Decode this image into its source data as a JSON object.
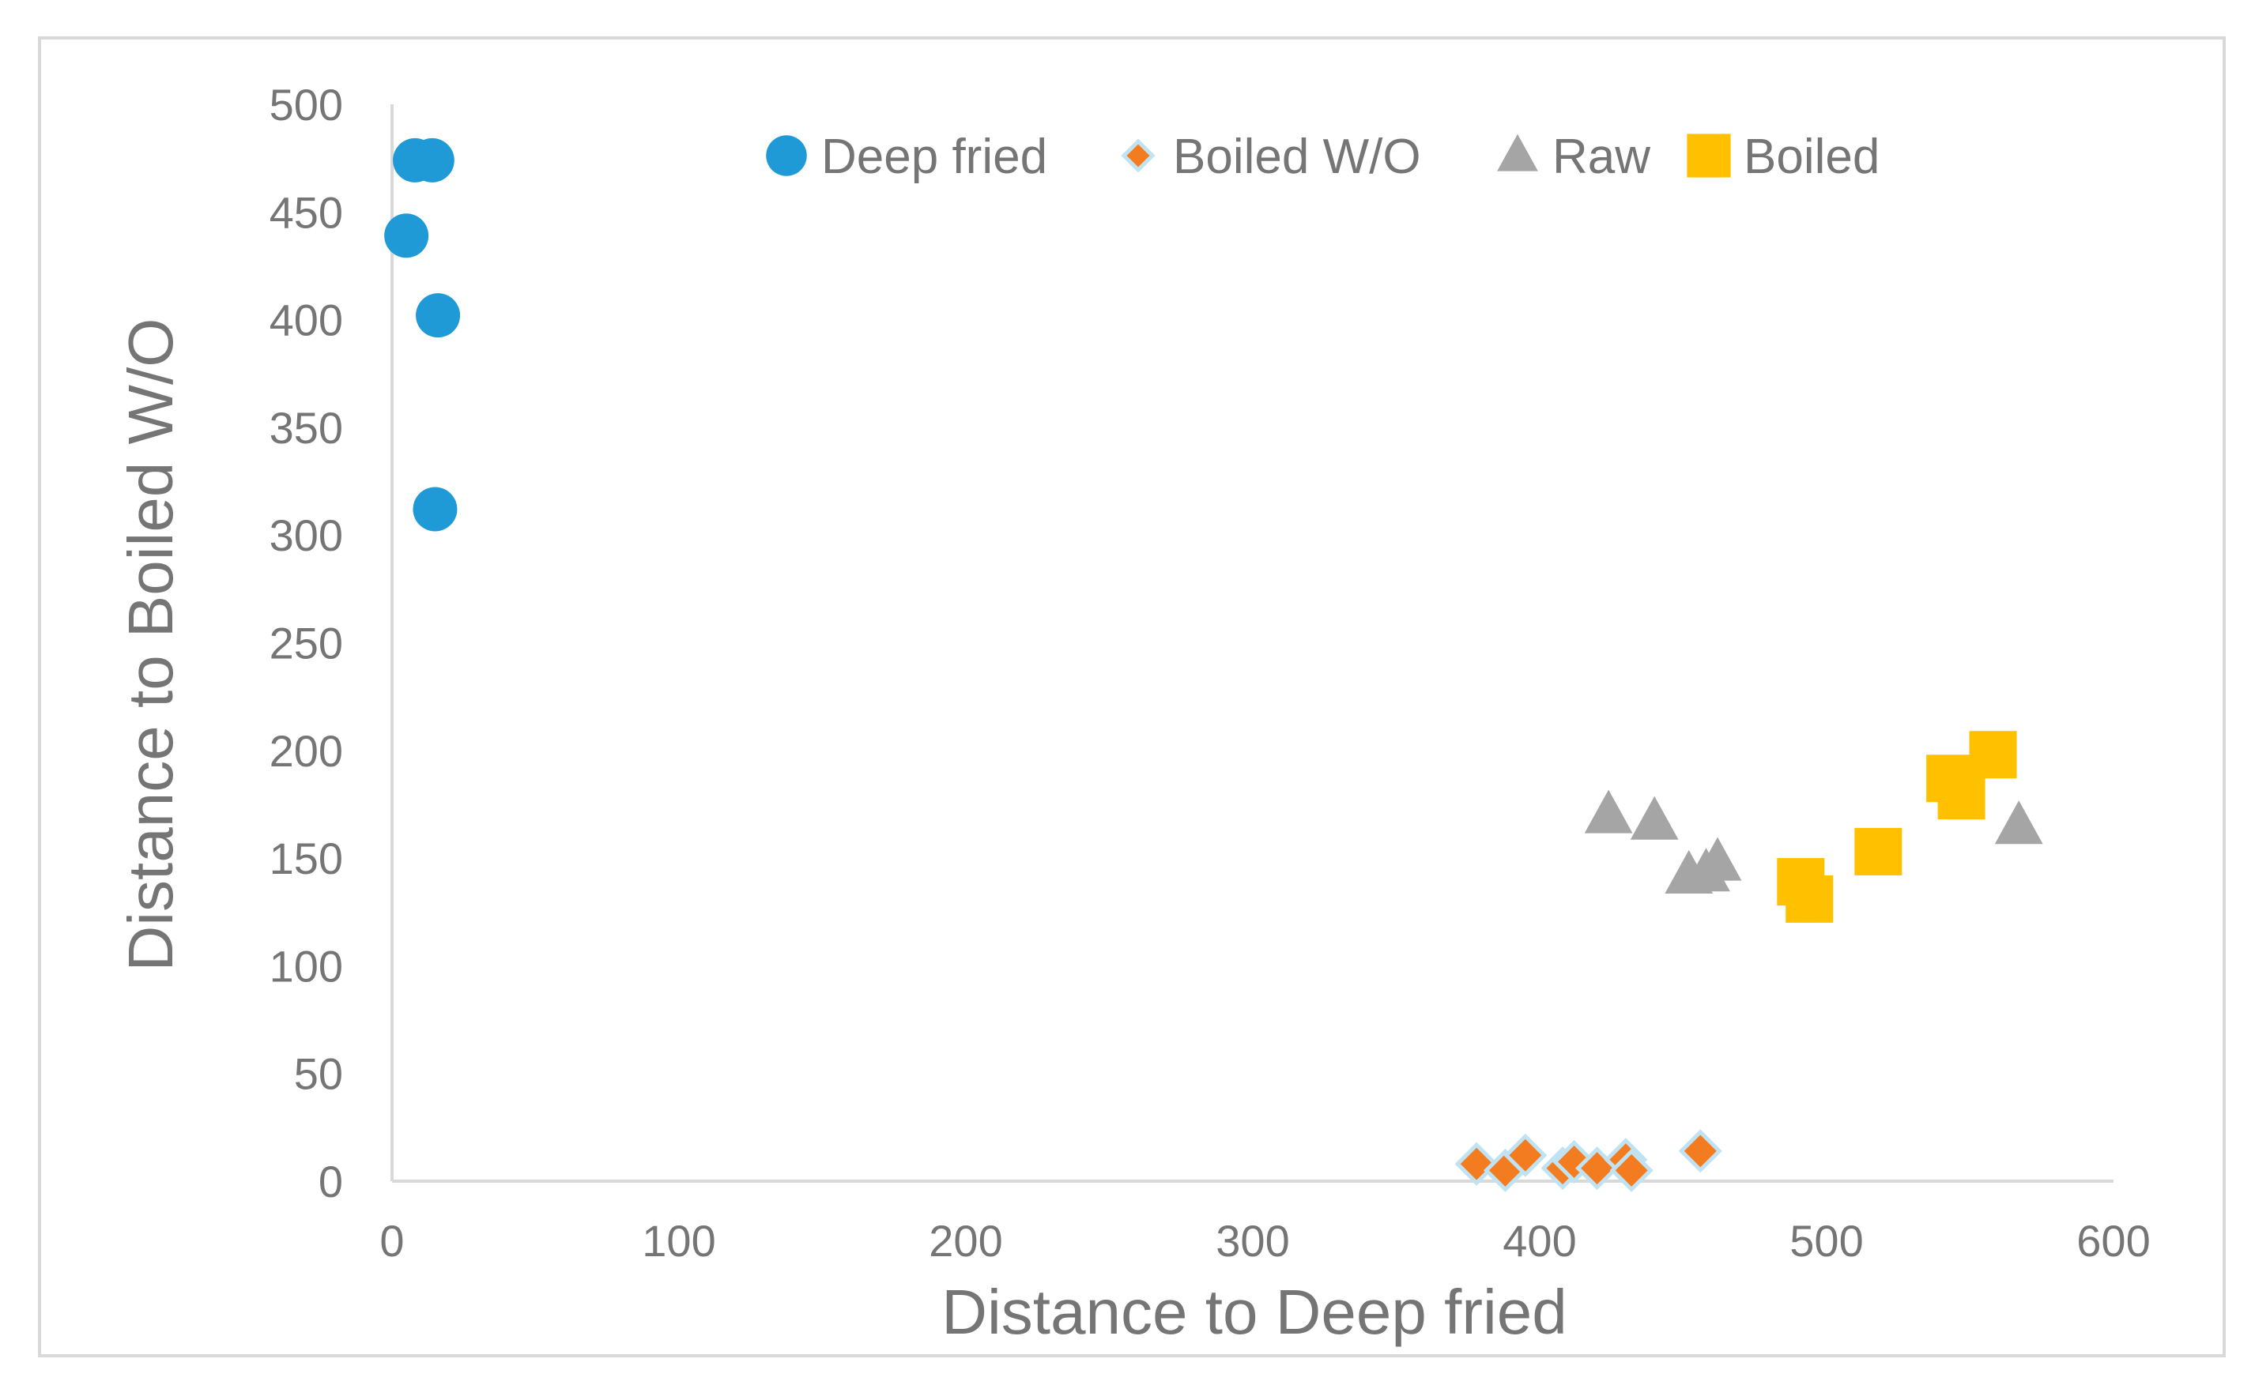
{
  "chart_data": {
    "type": "scatter",
    "title": "",
    "xlabel": "Distance to Deep fried",
    "ylabel": "Distance to Boiled W/O",
    "xlim": [
      0,
      600
    ],
    "ylim": [
      0,
      500
    ],
    "xticks": [
      0,
      100,
      200,
      300,
      400,
      500,
      600
    ],
    "yticks": [
      0,
      50,
      100,
      150,
      200,
      250,
      300,
      350,
      400,
      450,
      500
    ],
    "grid": false,
    "legend_position": "top",
    "series": [
      {
        "name": "Deep fried",
        "marker": "circle",
        "color": "#1F9AD6",
        "points": [
          [
            8,
            474
          ],
          [
            14,
            474
          ],
          [
            5,
            439
          ],
          [
            16,
            402
          ],
          [
            15,
            312
          ]
        ]
      },
      {
        "name": "Boiled W/O",
        "marker": "diamond",
        "color": "#F47C20",
        "points": [
          [
            378,
            8
          ],
          [
            388,
            5
          ],
          [
            395,
            12
          ],
          [
            408,
            6
          ],
          [
            412,
            9
          ],
          [
            420,
            6
          ],
          [
            430,
            10
          ],
          [
            432,
            5
          ],
          [
            456,
            14
          ]
        ]
      },
      {
        "name": "Raw",
        "marker": "triangle",
        "color": "#A5A5A5",
        "points": [
          [
            424,
            170
          ],
          [
            440,
            167
          ],
          [
            452,
            142
          ],
          [
            458,
            143
          ],
          [
            462,
            148
          ],
          [
            567,
            165
          ]
        ]
      },
      {
        "name": "Boiled",
        "marker": "square",
        "color": "#FFC000",
        "points": [
          [
            491,
            139
          ],
          [
            494,
            131
          ],
          [
            518,
            153
          ],
          [
            543,
            187
          ],
          [
            547,
            179
          ],
          [
            558,
            198
          ]
        ]
      }
    ]
  }
}
